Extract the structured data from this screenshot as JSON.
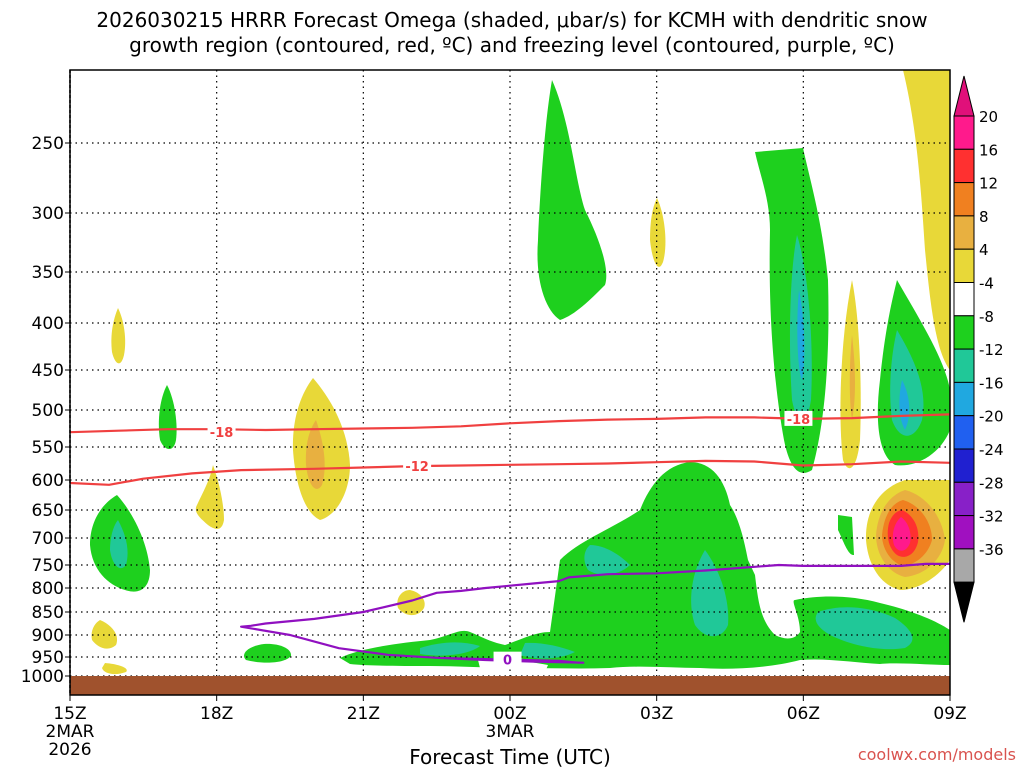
{
  "chart_data": {
    "type": "heatmap",
    "title_line1": "2026030215 HRRR Forecast Omega (shaded, μbar/s) for KCMH with dendritic snow",
    "title_line2": "growth region (contoured, red, ºC) and freezing level (contoured, purple, ºC)",
    "xlabel": "Forecast Time (UTC)",
    "x_ticks": [
      {
        "hour": 0,
        "label": "15Z",
        "sub1": "2MAR",
        "sub2": "2026"
      },
      {
        "hour": 3,
        "label": "18Z",
        "sub1": "",
        "sub2": ""
      },
      {
        "hour": 6,
        "label": "21Z",
        "sub1": "",
        "sub2": ""
      },
      {
        "hour": 9,
        "label": "00Z",
        "sub1": "3MAR",
        "sub2": ""
      },
      {
        "hour": 12,
        "label": "03Z",
        "sub1": "",
        "sub2": ""
      },
      {
        "hour": 15,
        "label": "06Z",
        "sub1": "",
        "sub2": ""
      },
      {
        "hour": 18,
        "label": "09Z",
        "sub1": "",
        "sub2": ""
      }
    ],
    "y_ticks": [
      {
        "p": 250,
        "label": "250"
      },
      {
        "p": 300,
        "label": "300"
      },
      {
        "p": 350,
        "label": "350"
      },
      {
        "p": 400,
        "label": "400"
      },
      {
        "p": 450,
        "label": "450"
      },
      {
        "p": 500,
        "label": "500"
      },
      {
        "p": 550,
        "label": "550"
      },
      {
        "p": 600,
        "label": "600"
      },
      {
        "p": 650,
        "label": "650"
      },
      {
        "p": 700,
        "label": "700"
      },
      {
        "p": 750,
        "label": "750"
      },
      {
        "p": 800,
        "label": "800"
      },
      {
        "p": 850,
        "label": "850"
      },
      {
        "p": 900,
        "label": "900"
      },
      {
        "p": 950,
        "label": "950"
      },
      {
        "p": 1000,
        "label": "1000"
      }
    ],
    "colorbar": {
      "levels": [
        {
          "label": "20",
          "color": "#ff1a8c"
        },
        {
          "label": "16",
          "color": "#ff3030"
        },
        {
          "label": "12",
          "color": "#f08020"
        },
        {
          "label": "8",
          "color": "#e8b040"
        },
        {
          "label": "4",
          "color": "#e8d838"
        },
        {
          "label": "-4",
          "color": "#ffffff"
        },
        {
          "label": "-8",
          "color": "#1ed01e"
        },
        {
          "label": "-12",
          "color": "#20c898"
        },
        {
          "label": "-16",
          "color": "#20a8e0"
        },
        {
          "label": "-20",
          "color": "#2060f0"
        },
        {
          "label": "-24",
          "color": "#2020d0"
        },
        {
          "label": "-28",
          "color": "#8820c8"
        },
        {
          "label": "-32",
          "color": "#a010c0"
        },
        {
          "label": "-36",
          "color": "#a8a8a8"
        }
      ],
      "top_tip_color": "#e0107a",
      "bottom_tip_color": "#000000"
    },
    "contours": [
      {
        "name": "dgz-minus18",
        "label": "-18",
        "color": "#f04040",
        "points": [
          [
            0,
            530
          ],
          [
            1,
            528
          ],
          [
            2,
            526
          ],
          [
            3,
            526
          ],
          [
            4,
            527
          ],
          [
            5,
            526
          ],
          [
            6,
            525
          ],
          [
            7,
            524
          ],
          [
            8,
            522
          ],
          [
            9,
            518
          ],
          [
            10,
            515
          ],
          [
            11,
            513
          ],
          [
            12,
            512
          ],
          [
            13,
            510
          ],
          [
            14,
            510
          ],
          [
            15,
            512
          ],
          [
            16,
            511
          ],
          [
            17,
            508
          ],
          [
            18,
            506
          ]
        ]
      },
      {
        "name": "dgz-minus12",
        "label": "-12",
        "color": "#f04040",
        "points": [
          [
            0,
            605
          ],
          [
            0.8,
            608
          ],
          [
            1.5,
            598
          ],
          [
            2.5,
            590
          ],
          [
            3.5,
            585
          ],
          [
            5,
            583
          ],
          [
            6,
            581
          ],
          [
            7,
            579
          ],
          [
            8,
            578
          ],
          [
            9,
            577
          ],
          [
            10,
            576
          ],
          [
            11,
            575
          ],
          [
            12,
            573
          ],
          [
            13,
            571
          ],
          [
            14,
            572
          ],
          [
            15,
            578
          ],
          [
            16,
            576
          ],
          [
            17,
            572
          ],
          [
            18,
            574
          ]
        ]
      },
      {
        "name": "freezing-level",
        "label": "0",
        "color": "#9010c0",
        "points": [
          [
            18,
            748
          ],
          [
            17.5,
            748
          ],
          [
            17,
            752
          ],
          [
            16,
            752
          ],
          [
            15,
            752
          ],
          [
            14.5,
            750
          ],
          [
            13,
            762
          ],
          [
            12,
            768
          ],
          [
            11,
            770
          ],
          [
            10.2,
            777
          ],
          [
            10,
            785
          ],
          [
            9.5,
            790
          ],
          [
            9,
            795
          ],
          [
            8.5,
            800
          ],
          [
            8,
            806
          ],
          [
            7.5,
            810
          ],
          [
            7,
            826
          ],
          [
            6,
            850
          ],
          [
            5,
            865
          ],
          [
            4,
            875
          ],
          [
            3.7,
            880
          ],
          [
            3.5,
            882
          ],
          [
            4.5,
            900
          ],
          [
            5.5,
            930
          ],
          [
            6.5,
            945
          ],
          [
            7.5,
            952
          ],
          [
            9,
            957
          ],
          [
            10,
            960
          ],
          [
            10.4,
            965
          ],
          [
            10.5,
            965
          ],
          [
            9.5,
            962
          ],
          [
            8.5,
            958
          ],
          [
            7.5,
            952
          ]
        ]
      }
    ],
    "credit": "coolwx.com/models"
  }
}
